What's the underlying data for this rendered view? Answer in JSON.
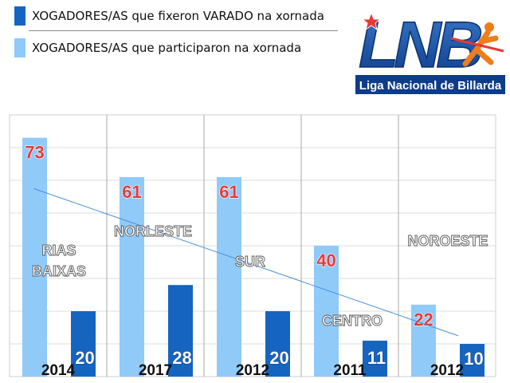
{
  "legend": {
    "items": [
      {
        "label": "XOGADORES/AS que fixeron VARADO na  xornada",
        "color": "#1565c0"
      },
      {
        "label": "XOGADORES/AS que participaron na xornada",
        "color": "#90caf9"
      }
    ]
  },
  "logo": {
    "wordmark": "LNB",
    "subtitle": "Liga Nacional de Billarda"
  },
  "chart_data": {
    "type": "bar",
    "categories": [
      "2014",
      "2017",
      "2012",
      "2011",
      "2012"
    ],
    "region_labels": [
      "RIAS BAIXAS",
      "NORLESTE",
      "SUR",
      "CENTRO",
      "NOROESTE"
    ],
    "series": [
      {
        "values": [
          73,
          61,
          61,
          40,
          22
        ],
        "color": "#90caf9",
        "label_color": "#e53935"
      },
      {
        "values": [
          20,
          28,
          20,
          11,
          10
        ],
        "color": "#1565c0",
        "label_color": "#ffffff"
      }
    ],
    "trendline": {
      "start": 57.5,
      "end": 12.5,
      "color": "#4a90d9"
    },
    "ylim": [
      0,
      80
    ],
    "grid": true
  }
}
